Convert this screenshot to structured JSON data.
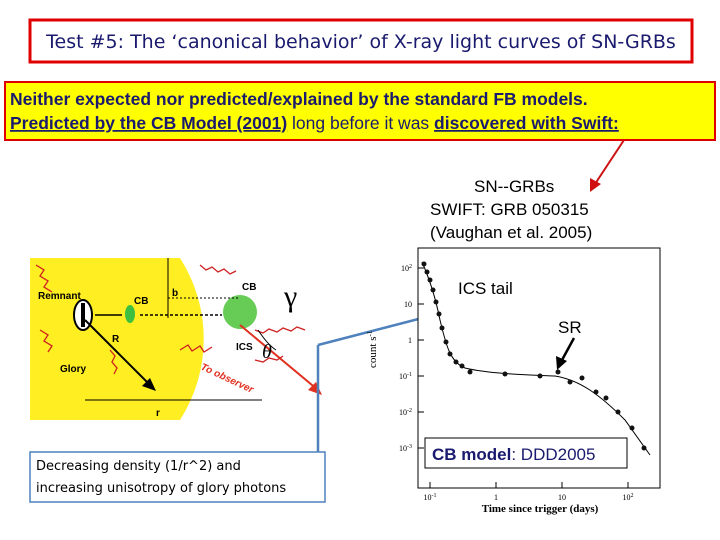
{
  "header": {
    "title": "Test #5:   The ‘canonical behavior’ of X-ray light curves of SN-GRBs"
  },
  "banner": {
    "line1": "Neither expected nor predicted/explained by the standard FB models.",
    "line2": {
      "part1": "Predicted by the CB Model (2001)",
      "part2": " long before it was ",
      "part3": "discovered with Swift:"
    }
  },
  "source": {
    "line1": "SN--GRBs",
    "line2": "SWIFT: GRB 050315",
    "line3": "(Vaughan et al. 2005)"
  },
  "annotations": {
    "ics_tail": "ICS tail",
    "sr": "SR",
    "model_bold": "CB model",
    "model_rest": ": DDD2005"
  },
  "diagram": {
    "remnant": "Remnant",
    "cb_left": "CB",
    "b": "b",
    "cb_right": "CB",
    "ics": "ICS",
    "r_big": "R",
    "glory": "Glory",
    "to_observer": "To observer",
    "r_small": "r",
    "theta": "θ",
    "gamma": "γ"
  },
  "caption": {
    "line1": "Decreasing density (1/r^2)  and",
    "line2": "increasing unisotropy of glory photons"
  },
  "plot": {
    "y_label": "count s",
    "y_label_exp": "-1",
    "x_label": "Time since trigger (days)",
    "yticks": [
      {
        "base": "10",
        "exp": "2"
      },
      {
        "base": "10",
        "exp": ""
      },
      {
        "base": "1",
        "exp": ""
      },
      {
        "base": "10",
        "exp": "-1"
      },
      {
        "base": "10",
        "exp": "-2"
      },
      {
        "base": "10",
        "exp": "-3"
      }
    ],
    "xticks": [
      {
        "base": "10",
        "exp": "-1"
      },
      {
        "base": "1",
        "exp": ""
      },
      {
        "base": "10",
        "exp": ""
      },
      {
        "base": "10",
        "exp": "2"
      }
    ]
  }
}
